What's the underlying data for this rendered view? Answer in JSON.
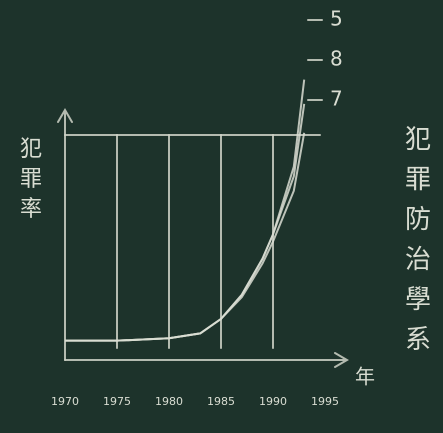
{
  "chart_data": {
    "type": "line",
    "ylabel": "犯罪率",
    "xlabel": "年",
    "side_text": "犯罪防治學系",
    "x": [
      1970,
      1975,
      1980,
      1983,
      1985,
      1987,
      1989,
      1990,
      1992,
      1993
    ],
    "series": [
      {
        "name": "5",
        "color": "#d9ddd2",
        "values": [
          8,
          8,
          9,
          11,
          17,
          27,
          42,
          52,
          80,
          116
        ]
      },
      {
        "name": "8",
        "color": "#d9ddd2",
        "values": [
          8,
          8,
          9,
          11,
          17,
          27,
          42,
          52,
          76,
          106
        ]
      },
      {
        "name": "7",
        "color": "#d9ddd2",
        "values": [
          8,
          8,
          9,
          11,
          17,
          26,
          40,
          49,
          70,
          94
        ]
      }
    ],
    "xlim": [
      1970,
      1995
    ],
    "xticks": [
      1970,
      1975,
      1980,
      1985,
      1990,
      1995
    ],
    "ylim": [
      0,
      120
    ],
    "grid": true
  }
}
